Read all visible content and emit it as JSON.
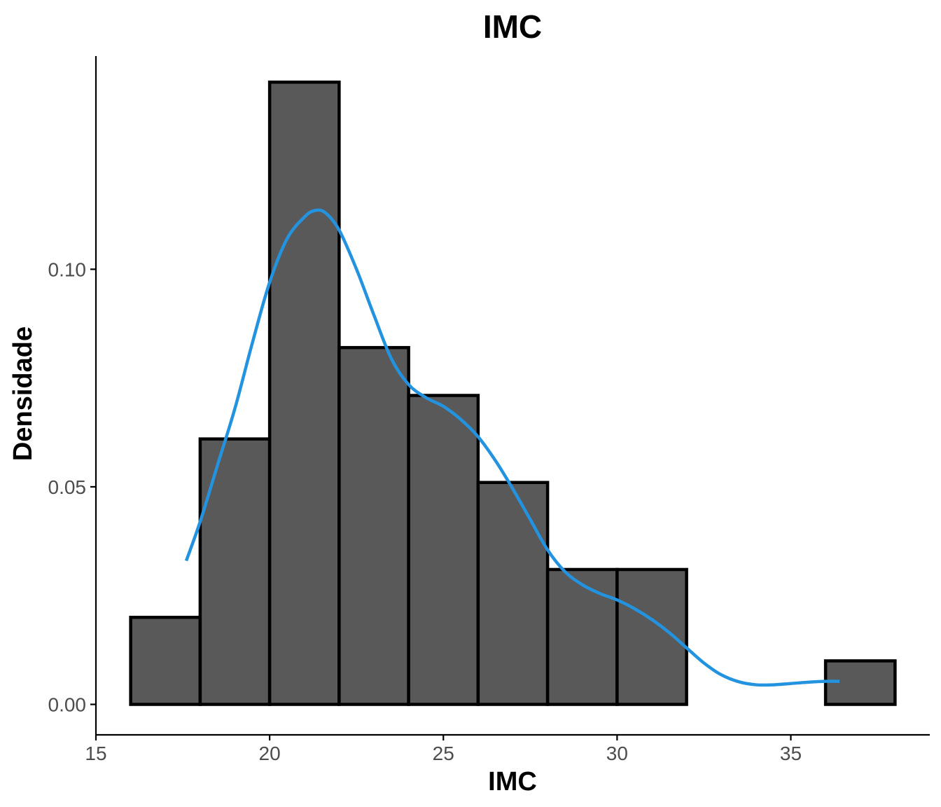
{
  "chart_data": {
    "type": "bar",
    "title": "IMC",
    "xlabel": "IMC",
    "ylabel": "Densidade",
    "xlim": [
      15,
      39
    ],
    "ylim": [
      -0.007,
      0.149
    ],
    "x_ticks": [
      15,
      20,
      25,
      30,
      35
    ],
    "y_ticks": [
      0.0,
      0.05,
      0.1
    ],
    "y_tick_labels": [
      "0.00",
      "0.05",
      "0.10"
    ],
    "grid": false,
    "legend": "none",
    "bar_color": "#595959",
    "bar_edge_color": "#000000",
    "bins": [
      {
        "x0": 16,
        "x1": 18,
        "density": 0.02
      },
      {
        "x0": 18,
        "x1": 20,
        "density": 0.061
      },
      {
        "x0": 20,
        "x1": 22,
        "density": 0.143
      },
      {
        "x0": 22,
        "x1": 24,
        "density": 0.082
      },
      {
        "x0": 24,
        "x1": 26,
        "density": 0.071
      },
      {
        "x0": 26,
        "x1": 28,
        "density": 0.051
      },
      {
        "x0": 28,
        "x1": 30,
        "density": 0.031
      },
      {
        "x0": 30,
        "x1": 32,
        "density": 0.031
      },
      {
        "x0": 32,
        "x1": 34,
        "density": 0.0
      },
      {
        "x0": 34,
        "x1": 36,
        "density": 0.0
      },
      {
        "x0": 36,
        "x1": 38,
        "density": 0.01
      }
    ],
    "density_curve": {
      "color": "#2393E0",
      "x": [
        17.6,
        18,
        18.5,
        19,
        19.5,
        20,
        20.5,
        21,
        21.3,
        21.6,
        22,
        22.5,
        23,
        23.5,
        24,
        24.5,
        25,
        25.5,
        26,
        26.5,
        27,
        27.5,
        28,
        28.5,
        29,
        29.5,
        30,
        30.5,
        31,
        31.5,
        32,
        32.5,
        33,
        33.5,
        34,
        34.5,
        35,
        35.5,
        36,
        36.4
      ],
      "y": [
        0.033,
        0.042,
        0.055,
        0.068,
        0.083,
        0.097,
        0.107,
        0.112,
        0.1135,
        0.113,
        0.109,
        0.1,
        0.0895,
        0.0795,
        0.0735,
        0.0705,
        0.0685,
        0.0655,
        0.0615,
        0.056,
        0.0495,
        0.0425,
        0.0355,
        0.0305,
        0.0275,
        0.0255,
        0.024,
        0.022,
        0.0195,
        0.0165,
        0.013,
        0.0095,
        0.0068,
        0.0052,
        0.0045,
        0.0045,
        0.0048,
        0.0051,
        0.0053,
        0.0053
      ]
    }
  }
}
